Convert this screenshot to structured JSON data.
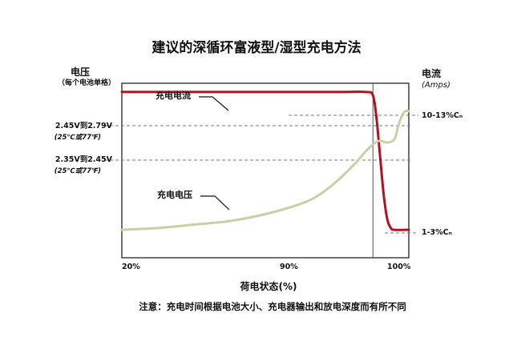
{
  "chart_data": {
    "type": "line",
    "title": "建议的深循环富液型/湿型充电方法",
    "left_axis": {
      "label": "电压",
      "sublabel": "（每个电池单格）"
    },
    "right_axis": {
      "label": "电流",
      "sublabel": "(Amps)"
    },
    "xlabel": "荷电状态(%)",
    "x_ticks": [
      "20%",
      "90%",
      "100%"
    ],
    "x_tick_values": [
      20,
      90,
      100
    ],
    "xlim": [
      20,
      100
    ],
    "voltage_levels": [
      {
        "label": "2.45V到2.79V",
        "sublabel": "(25℃或77℉)"
      },
      {
        "label": "2.35V到2.45V",
        "sublabel": "(25℃或77℉)"
      }
    ],
    "current_levels": [
      {
        "label": "10-13%Cₙ"
      },
      {
        "label": "1-3%Cₙ"
      }
    ],
    "series": [
      {
        "name": "充电电流",
        "color": "#b2121c",
        "x": [
          20,
          40,
          60,
          80,
          88,
          90,
          91,
          92,
          93,
          94,
          95,
          96,
          100
        ],
        "level": [
          0.95,
          0.95,
          0.95,
          0.95,
          0.95,
          0.93,
          0.8,
          0.58,
          0.36,
          0.22,
          0.17,
          0.16,
          0.16
        ]
      },
      {
        "name": "充电电压",
        "color": "#c8cfa6",
        "x": [
          20,
          30,
          40,
          50,
          60,
          70,
          75,
          80,
          85,
          88,
          90,
          92,
          94,
          96,
          97,
          98,
          99,
          100
        ],
        "level": [
          0.16,
          0.17,
          0.19,
          0.21,
          0.25,
          0.31,
          0.36,
          0.44,
          0.54,
          0.61,
          0.65,
          0.67,
          0.66,
          0.68,
          0.75,
          0.81,
          0.84,
          0.84
        ]
      }
    ]
  },
  "note": "注意：充电时间根据电池大小、充电器输出和放电深度而有所不同"
}
